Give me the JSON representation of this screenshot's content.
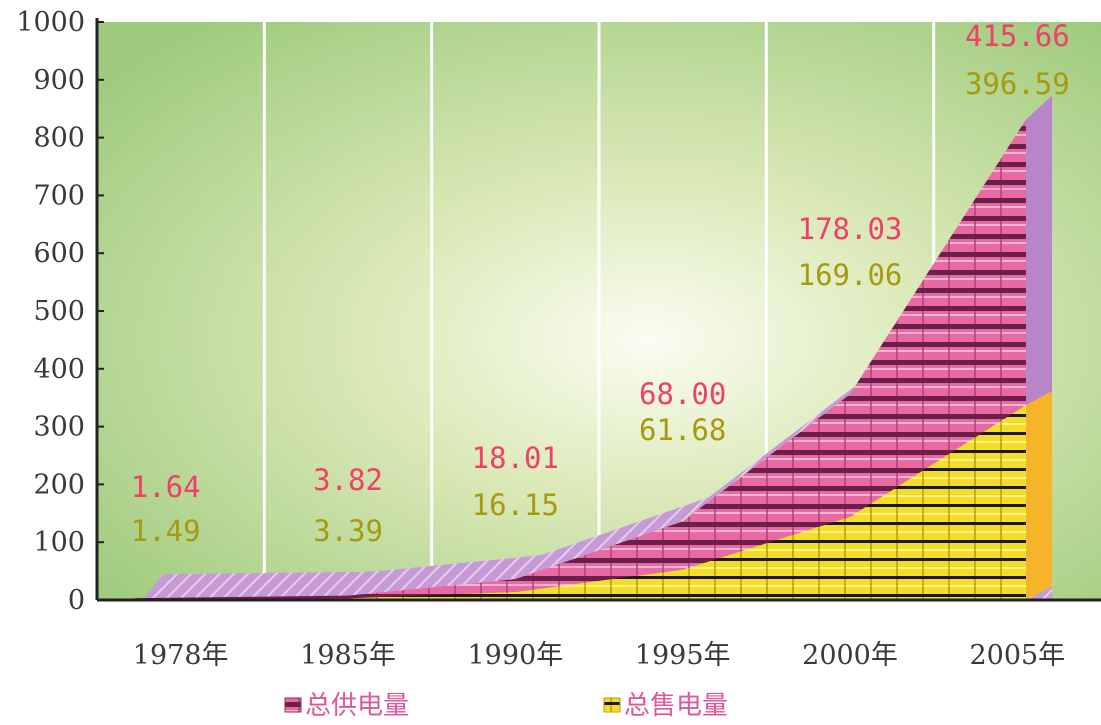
{
  "chart_data": {
    "type": "area",
    "categories": [
      "1978年",
      "1985年",
      "1990年",
      "1995年",
      "2000年",
      "2005年"
    ],
    "ylim": [
      0,
      1000
    ],
    "yticks": [
      0,
      100,
      200,
      300,
      400,
      500,
      600,
      700,
      800,
      900,
      1000
    ],
    "grid": "vertical",
    "legend_position": "bottom",
    "series": [
      {
        "name": "总供电量",
        "color": "#e8609a",
        "label_color": "#f0406a",
        "values": [
          1.64,
          3.82,
          18.01,
          68.0,
          178.03,
          415.66
        ],
        "labels": [
          "1.64",
          "3.82",
          "18.01",
          "68.00",
          "178.03",
          "415.66"
        ]
      },
      {
        "name": "总售电量",
        "color": "#f5e23a",
        "label_color": "#a89a10",
        "values": [
          1.49,
          3.39,
          16.15,
          61.68,
          169.06,
          396.59
        ],
        "labels": [
          "1.49",
          "3.39",
          "16.15",
          "61.68",
          "169.06",
          "396.59"
        ]
      }
    ]
  }
}
